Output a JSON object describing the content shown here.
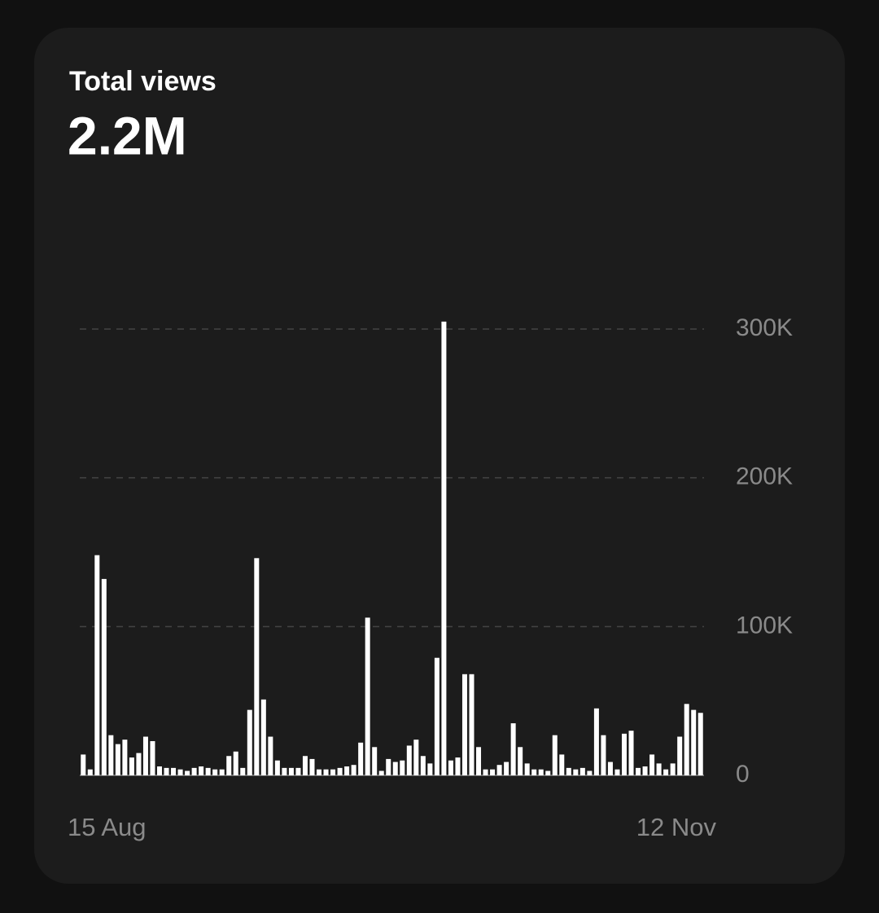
{
  "chart_data": {
    "type": "bar",
    "title": "Total views",
    "subtitle": "2.2M",
    "categories": [
      "15 Aug",
      null,
      null,
      null,
      null,
      null,
      null,
      null,
      null,
      null,
      null,
      null,
      null,
      null,
      null,
      null,
      null,
      null,
      null,
      null,
      null,
      null,
      null,
      null,
      null,
      null,
      null,
      null,
      null,
      null,
      null,
      null,
      null,
      null,
      null,
      null,
      null,
      null,
      null,
      null,
      null,
      null,
      null,
      null,
      null,
      null,
      null,
      null,
      null,
      null,
      null,
      null,
      null,
      null,
      null,
      null,
      null,
      null,
      null,
      null,
      null,
      null,
      null,
      null,
      null,
      null,
      null,
      null,
      null,
      null,
      null,
      null,
      null,
      null,
      null,
      null,
      null,
      null,
      null,
      null,
      null,
      null,
      null,
      null,
      null,
      null,
      null,
      null,
      null,
      "12 Nov"
    ],
    "values": [
      14000,
      4000,
      148000,
      132000,
      27000,
      21000,
      24000,
      12000,
      15000,
      26000,
      23000,
      6000,
      5000,
      5000,
      4000,
      3000,
      5000,
      6000,
      5000,
      4000,
      4000,
      13000,
      16000,
      5000,
      44000,
      146000,
      51000,
      26000,
      10000,
      5000,
      5000,
      5000,
      13000,
      11000,
      4000,
      4000,
      4000,
      5000,
      6000,
      7000,
      22000,
      106000,
      19000,
      3000,
      11000,
      9000,
      10000,
      20000,
      24000,
      13000,
      8000,
      79000,
      305000,
      10000,
      12000,
      68000,
      68000,
      19000,
      4000,
      4000,
      7000,
      9000,
      35000,
      19000,
      8000,
      4000,
      4000,
      3000,
      27000,
      14000,
      5000,
      4000,
      5000,
      3000,
      45000,
      27000,
      9000,
      4000,
      28000,
      30000,
      5000,
      6000,
      14000,
      8000,
      4000,
      8000,
      26000,
      48000,
      44000,
      42000
    ],
    "color": "#ffffff",
    "ylim": [
      0,
      300000
    ],
    "yticks": [
      0,
      {
        "value": 100000,
        "label": "100K"
      },
      {
        "value": 200000,
        "label": "200K"
      },
      {
        "value": 300000,
        "label": "300K"
      }
    ],
    "grid": true
  }
}
